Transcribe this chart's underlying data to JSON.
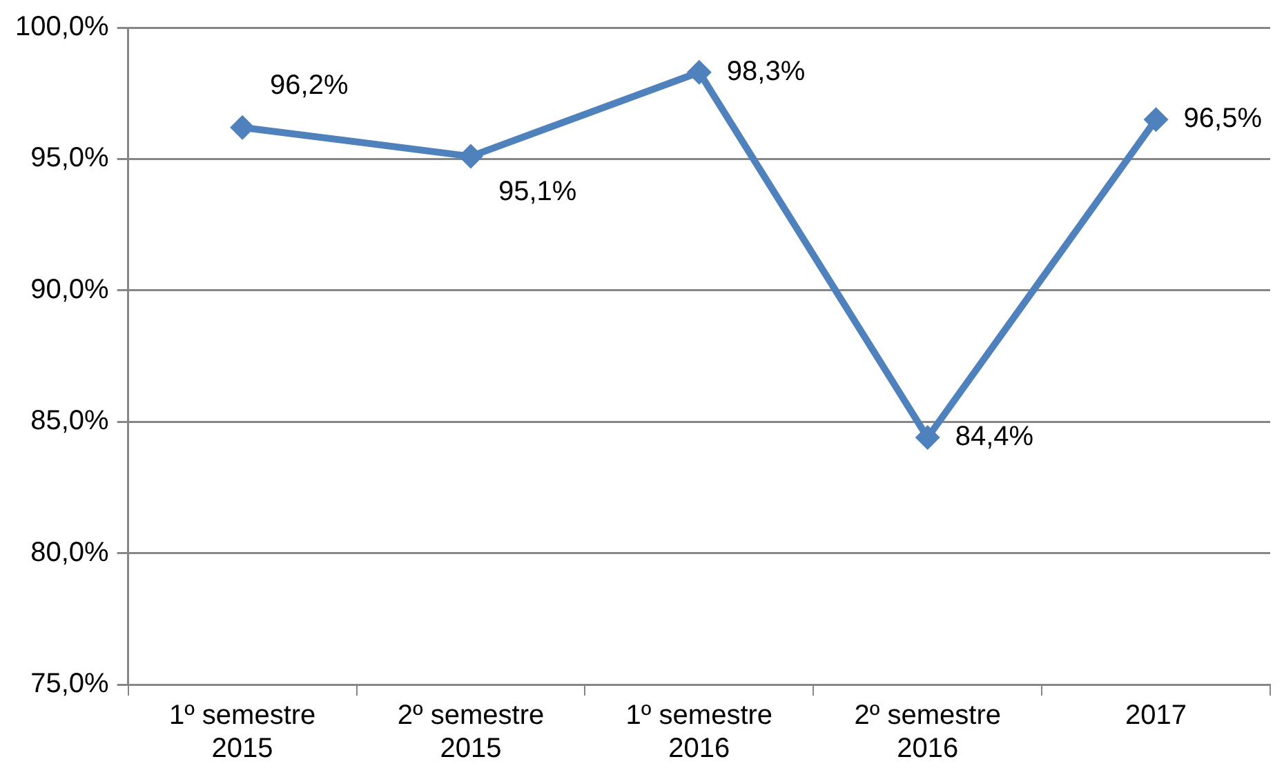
{
  "chart_data": {
    "type": "line",
    "categories": [
      "1º semestre 2015",
      "2º semestre 2015",
      "1º semestre 2016",
      "2º semestre 2016",
      "2017"
    ],
    "series": [
      {
        "color": "#4f81bd",
        "values": [
          96.2,
          95.1,
          98.3,
          84.4,
          96.5
        ],
        "value_labels": [
          "96,2%",
          "95,1%",
          "98,3%",
          "84,4%",
          "96,5%"
        ]
      }
    ],
    "ylim": [
      75,
      100
    ],
    "yticks": [
      {
        "value": 75,
        "label": "75,0%"
      },
      {
        "value": 80,
        "label": "80,0%"
      },
      {
        "value": 85,
        "label": "85,0%"
      },
      {
        "value": 90,
        "label": "90,0%"
      },
      {
        "value": 95,
        "label": "95,0%"
      },
      {
        "value": 100,
        "label": "100,0%"
      }
    ],
    "grid": "y",
    "legend": false,
    "marker": "diamond",
    "line_style": "solid"
  }
}
